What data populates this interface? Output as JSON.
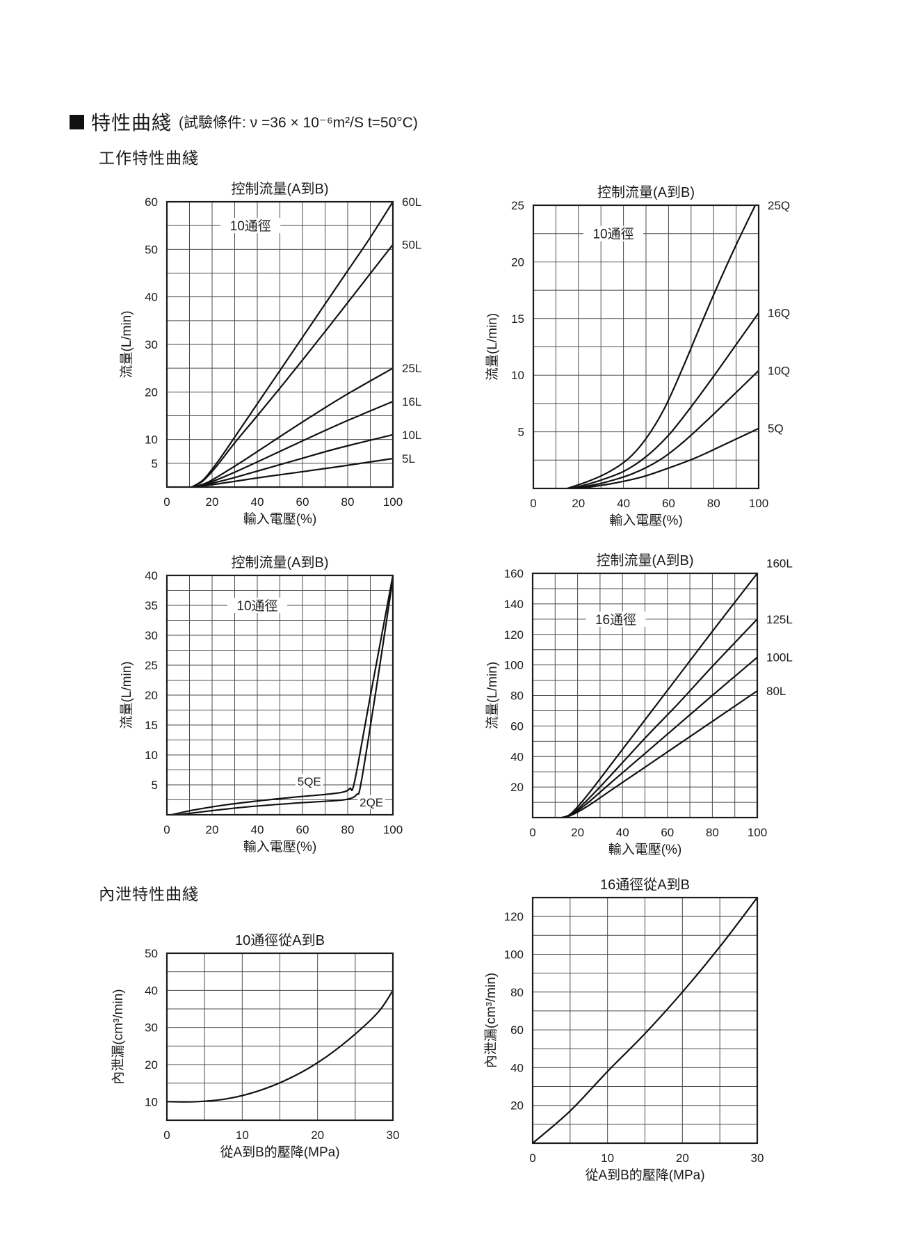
{
  "page": {
    "header": {
      "title": "特性曲綫",
      "condition": "(試驗條件: ν =36 × 10⁻⁶m²/S  t=50°C)"
    },
    "sections": [
      {
        "label": "工作特性曲綫"
      },
      {
        "label": "內泄特性曲綫"
      }
    ]
  },
  "chart_data": [
    {
      "id": "flow-dn10-L",
      "type": "line",
      "title": "控制流量(A到B)",
      "annotation": "10通徑",
      "annotation_at": {
        "x": 37,
        "y": 55
      },
      "xlabel": "輸入電壓(%)",
      "ylabel": "流量(L/min)",
      "xlim": [
        0,
        100
      ],
      "ylim": [
        0,
        60
      ],
      "x_grid_step": 10,
      "y_grid_step": 5,
      "x_ticks": [
        0,
        20,
        40,
        60,
        80,
        100
      ],
      "y_ticks": [
        60,
        50,
        40,
        30,
        20,
        10,
        5
      ],
      "legend_position": "right-edge",
      "grid": true,
      "series": [
        {
          "name": "60L",
          "end_label_y": 60,
          "points": [
            [
              11,
              0
            ],
            [
              16,
              1.5
            ],
            [
              22,
              5
            ],
            [
              30,
              10.5
            ],
            [
              40,
              17.5
            ],
            [
              50,
              24.5
            ],
            [
              60,
              31.5
            ],
            [
              70,
              38.5
            ],
            [
              80,
              45.5
            ],
            [
              90,
              52.5
            ],
            [
              100,
              60
            ]
          ]
        },
        {
          "name": "50L",
          "end_label_y": 51,
          "points": [
            [
              11,
              0
            ],
            [
              16,
              1.3
            ],
            [
              22,
              4.4
            ],
            [
              30,
              9.3
            ],
            [
              40,
              15
            ],
            [
              50,
              20.8
            ],
            [
              60,
              26.7
            ],
            [
              70,
              32.7
            ],
            [
              80,
              38.8
            ],
            [
              90,
              44.9
            ],
            [
              100,
              51
            ]
          ]
        },
        {
          "name": "25L",
          "end_label_y": 25,
          "points": [
            [
              12,
              0
            ],
            [
              18,
              1
            ],
            [
              26,
              3.2
            ],
            [
              36,
              6.2
            ],
            [
              50,
              10.6
            ],
            [
              64,
              14.9
            ],
            [
              80,
              19.6
            ],
            [
              100,
              25
            ]
          ]
        },
        {
          "name": "16L",
          "end_label_y": 18,
          "points": [
            [
              12,
              0
            ],
            [
              18,
              0.8
            ],
            [
              26,
              2.3
            ],
            [
              36,
              4.4
            ],
            [
              50,
              7.5
            ],
            [
              64,
              10.6
            ],
            [
              80,
              14
            ],
            [
              100,
              18
            ]
          ]
        },
        {
          "name": "10L",
          "end_label_y": 11,
          "points": [
            [
              13,
              0
            ],
            [
              20,
              0.8
            ],
            [
              30,
              2
            ],
            [
              44,
              3.9
            ],
            [
              58,
              5.8
            ],
            [
              76,
              8.2
            ],
            [
              100,
              11
            ]
          ]
        },
        {
          "name": "5L",
          "end_label_y": 6,
          "points": [
            [
              13,
              0
            ],
            [
              20,
              0.5
            ],
            [
              30,
              1.2
            ],
            [
              44,
              2.2
            ],
            [
              58,
              3.1
            ],
            [
              76,
              4.3
            ],
            [
              100,
              6
            ]
          ]
        }
      ]
    },
    {
      "id": "flow-dn10-Q",
      "type": "line",
      "title": "控制流量(A到B)",
      "annotation": "10通徑",
      "annotation_at": {
        "x": 35.5,
        "y": 22.5
      },
      "xlabel": "輸入電壓(%)",
      "ylabel": "流量(L/min)",
      "xlim": [
        0,
        100
      ],
      "ylim": [
        0,
        25
      ],
      "x_grid_step": 10,
      "y_grid_step": 2.5,
      "x_ticks": [
        0,
        20,
        40,
        60,
        80,
        100
      ],
      "y_ticks": [
        25,
        20,
        15,
        10,
        5
      ],
      "legend_position": "right-edge",
      "grid": true,
      "series": [
        {
          "name": "25Q",
          "end_label_y": 25,
          "points": [
            [
              15,
              0
            ],
            [
              24,
              0.6
            ],
            [
              33,
              1.4
            ],
            [
              42,
              2.6
            ],
            [
              50,
              4.4
            ],
            [
              58,
              7
            ],
            [
              66,
              10.5
            ],
            [
              74,
              14.3
            ],
            [
              82,
              18
            ],
            [
              90,
              21.5
            ],
            [
              98.5,
              25
            ]
          ]
        },
        {
          "name": "16Q",
          "end_label_y": 15.5,
          "points": [
            [
              17,
              0
            ],
            [
              28,
              0.6
            ],
            [
              40,
              1.5
            ],
            [
              50,
              2.8
            ],
            [
              60,
              4.7
            ],
            [
              70,
              7.2
            ],
            [
              80,
              9.9
            ],
            [
              90,
              12.7
            ],
            [
              100,
              15.5
            ]
          ]
        },
        {
          "name": "10Q",
          "end_label_y": 10.4,
          "points": [
            [
              18,
              0
            ],
            [
              31,
              0.5
            ],
            [
              44,
              1.3
            ],
            [
              56,
              2.5
            ],
            [
              66,
              4
            ],
            [
              76,
              5.8
            ],
            [
              87,
              7.9
            ],
            [
              100,
              10.4
            ]
          ]
        },
        {
          "name": "5Q",
          "end_label_y": 5.3,
          "points": [
            [
              20,
              0
            ],
            [
              34,
              0.4
            ],
            [
              48,
              1
            ],
            [
              60,
              1.8
            ],
            [
              72,
              2.7
            ],
            [
              84,
              3.8
            ],
            [
              100,
              5.3
            ]
          ]
        }
      ]
    },
    {
      "id": "flow-dn10-QE",
      "type": "line",
      "title": "控制流量(A到B)",
      "annotation": "10通徑",
      "annotation_at": {
        "x": 40,
        "y": 35
      },
      "xlabel": "輸入電壓(%)",
      "ylabel": "流量(L/min)",
      "xlim": [
        0,
        100
      ],
      "ylim": [
        0,
        40
      ],
      "x_grid_step": 10,
      "y_grid_step": 2.5,
      "x_ticks": [
        0,
        20,
        40,
        60,
        80,
        100
      ],
      "y_ticks": [
        40,
        35,
        30,
        25,
        20,
        15,
        10,
        5
      ],
      "legend_position": "inside",
      "grid": true,
      "series": [
        {
          "name": "5QE",
          "label_at": [
            63,
            5.6
          ],
          "points": [
            [
              2,
              0
            ],
            [
              12,
              0.8
            ],
            [
              25,
              1.6
            ],
            [
              40,
              2.3
            ],
            [
              55,
              2.9
            ],
            [
              70,
              3.4
            ],
            [
              78,
              3.8
            ],
            [
              81,
              4.4
            ],
            [
              83,
              5.5
            ],
            [
              90,
              19.8
            ],
            [
              100,
              40
            ]
          ]
        },
        {
          "name": "2QE",
          "label_at": [
            90.5,
            2.1
          ],
          "points": [
            [
              5,
              0
            ],
            [
              18,
              0.6
            ],
            [
              35,
              1.3
            ],
            [
              55,
              1.9
            ],
            [
              72,
              2.3
            ],
            [
              80,
              2.6
            ],
            [
              84,
              3.4
            ],
            [
              86,
              5.5
            ],
            [
              93,
              22
            ],
            [
              100,
              39.5
            ]
          ]
        }
      ]
    },
    {
      "id": "flow-dn16-L",
      "type": "line",
      "title": "控制流量(A到B)",
      "annotation": "16通徑",
      "annotation_at": {
        "x": 37,
        "y": 130
      },
      "xlabel": "輸入電壓(%)",
      "ylabel": "流量(L/min)",
      "xlim": [
        0,
        100
      ],
      "ylim": [
        0,
        160
      ],
      "x_grid_step": 10,
      "y_grid_step": 10,
      "x_ticks": [
        0,
        20,
        40,
        60,
        80,
        100
      ],
      "y_ticks": [
        160,
        140,
        120,
        100,
        80,
        60,
        40,
        20
      ],
      "legend_position": "right-edge",
      "grid": true,
      "series": [
        {
          "name": "160L",
          "end_label_y": 166.5,
          "points": [
            [
              13,
              0
            ],
            [
              17,
              2.5
            ],
            [
              24,
              14
            ],
            [
              35,
              35
            ],
            [
              50,
              64
            ],
            [
              65,
              93
            ],
            [
              80,
              122
            ],
            [
              100,
              160
            ]
          ]
        },
        {
          "name": "125L",
          "end_label_y": 130,
          "points": [
            [
              13,
              0
            ],
            [
              17,
              2
            ],
            [
              24,
              11
            ],
            [
              35,
              28
            ],
            [
              50,
              52
            ],
            [
              65,
              75
            ],
            [
              80,
              99
            ],
            [
              100,
              130
            ]
          ]
        },
        {
          "name": "100L",
          "end_label_y": 105,
          "points": [
            [
              13,
              0
            ],
            [
              17,
              1.7
            ],
            [
              24,
              9
            ],
            [
              35,
              23
            ],
            [
              50,
              42
            ],
            [
              65,
              61
            ],
            [
              80,
              80
            ],
            [
              100,
              105
            ]
          ]
        },
        {
          "name": "80L",
          "end_label_y": 83,
          "points": [
            [
              13,
              0
            ],
            [
              17,
              1.4
            ],
            [
              24,
              7
            ],
            [
              35,
              18
            ],
            [
              50,
              33
            ],
            [
              65,
              48
            ],
            [
              80,
              63
            ],
            [
              100,
              83
            ]
          ]
        }
      ]
    },
    {
      "id": "leakage-dn10",
      "type": "line",
      "title": "10通徑從A到B",
      "annotation": null,
      "xlabel": "從A到B的壓降(MPa)",
      "ylabel": "內泄漏(cm³/min)",
      "xlim": [
        0,
        30
      ],
      "ylim": [
        5,
        50
      ],
      "x_grid_step": 5,
      "y_grid_step": 5,
      "x_ticks": [
        0,
        10,
        20,
        30
      ],
      "y_ticks": [
        50,
        40,
        30,
        20,
        10
      ],
      "legend_position": "none",
      "grid": true,
      "series": [
        {
          "name": "leakage",
          "points": [
            [
              0,
              10
            ],
            [
              4,
              10
            ],
            [
              8,
              10.8
            ],
            [
              12,
              12.8
            ],
            [
              16,
              16
            ],
            [
              20,
              20.5
            ],
            [
              24,
              26.5
            ],
            [
              28,
              34
            ],
            [
              30,
              40
            ]
          ]
        }
      ]
    },
    {
      "id": "leakage-dn16",
      "type": "line",
      "title": "16通徑從A到B",
      "annotation": null,
      "xlabel": "從A到B的壓降(MPa)",
      "ylabel": "內泄漏(cm³/min)",
      "xlim": [
        0,
        30
      ],
      "ylim": [
        0,
        130
      ],
      "x_grid_step": 5,
      "y_grid_step": 10,
      "x_ticks": [
        0,
        10,
        20,
        30
      ],
      "y_ticks": [
        120,
        100,
        80,
        60,
        40,
        20
      ],
      "legend_position": "none",
      "grid": true,
      "series": [
        {
          "name": "leakage",
          "points": [
            [
              0,
              0
            ],
            [
              5,
              17
            ],
            [
              10,
              38
            ],
            [
              15,
              58
            ],
            [
              20,
              80
            ],
            [
              25,
              104
            ],
            [
              30,
              130
            ]
          ]
        }
      ]
    }
  ]
}
